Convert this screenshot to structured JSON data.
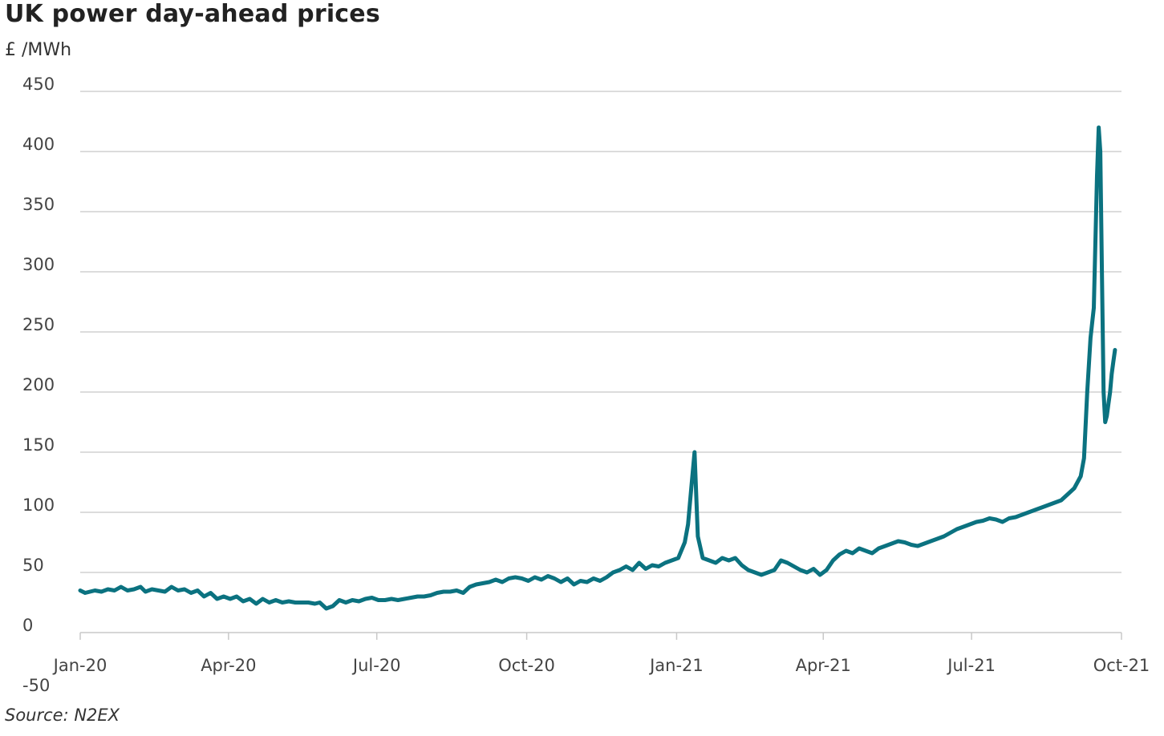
{
  "title": "UK power day-ahead prices",
  "unit": "£ /MWh",
  "source": "Source: N2EX",
  "chart_data": {
    "type": "line",
    "title": "UK power day-ahead prices",
    "ylabel": "£ /MWh",
    "xlabel": "",
    "ylim": [
      -50,
      450
    ],
    "y_ticks": [
      450,
      400,
      350,
      300,
      250,
      200,
      150,
      100,
      50,
      0,
      -50
    ],
    "x_tick_labels": [
      "Jan-20",
      "Apr-20",
      "Jul-20",
      "Oct-20",
      "Jan-21",
      "Apr-21",
      "Jul-21",
      "Oct-21"
    ],
    "x_tick_dates": [
      "2020-01-01",
      "2020-04-01",
      "2020-07-01",
      "2020-10-01",
      "2021-01-01",
      "2021-04-01",
      "2021-07-01",
      "2021-10-01"
    ],
    "grid": true,
    "line_color": "#0b7280",
    "series": [
      {
        "points": [
          [
            "2020-01-01",
            35
          ],
          [
            "2020-01-04",
            33
          ],
          [
            "2020-01-10",
            35
          ],
          [
            "2020-01-14",
            34
          ],
          [
            "2020-01-18",
            36
          ],
          [
            "2020-01-22",
            35
          ],
          [
            "2020-01-26",
            38
          ],
          [
            "2020-01-30",
            35
          ],
          [
            "2020-02-03",
            36
          ],
          [
            "2020-02-07",
            38
          ],
          [
            "2020-02-10",
            34
          ],
          [
            "2020-02-14",
            36
          ],
          [
            "2020-02-18",
            35
          ],
          [
            "2020-02-22",
            34
          ],
          [
            "2020-02-26",
            38
          ],
          [
            "2020-03-01",
            35
          ],
          [
            "2020-03-05",
            36
          ],
          [
            "2020-03-09",
            33
          ],
          [
            "2020-03-13",
            35
          ],
          [
            "2020-03-17",
            30
          ],
          [
            "2020-03-21",
            33
          ],
          [
            "2020-03-25",
            28
          ],
          [
            "2020-03-29",
            30
          ],
          [
            "2020-04-02",
            28
          ],
          [
            "2020-04-06",
            30
          ],
          [
            "2020-04-10",
            26
          ],
          [
            "2020-04-14",
            28
          ],
          [
            "2020-04-18",
            24
          ],
          [
            "2020-04-22",
            28
          ],
          [
            "2020-04-26",
            25
          ],
          [
            "2020-04-30",
            27
          ],
          [
            "2020-05-04",
            25
          ],
          [
            "2020-05-08",
            26
          ],
          [
            "2020-05-12",
            25
          ],
          [
            "2020-05-16",
            25
          ],
          [
            "2020-05-20",
            25
          ],
          [
            "2020-05-24",
            24
          ],
          [
            "2020-05-27",
            25
          ],
          [
            "2020-05-31",
            20
          ],
          [
            "2020-06-04",
            22
          ],
          [
            "2020-06-08",
            27
          ],
          [
            "2020-06-12",
            25
          ],
          [
            "2020-06-16",
            27
          ],
          [
            "2020-06-20",
            26
          ],
          [
            "2020-06-24",
            28
          ],
          [
            "2020-06-28",
            29
          ],
          [
            "2020-07-02",
            27
          ],
          [
            "2020-07-06",
            27
          ],
          [
            "2020-07-10",
            28
          ],
          [
            "2020-07-14",
            27
          ],
          [
            "2020-07-18",
            28
          ],
          [
            "2020-07-22",
            29
          ],
          [
            "2020-07-26",
            30
          ],
          [
            "2020-07-30",
            30
          ],
          [
            "2020-08-03",
            31
          ],
          [
            "2020-08-07",
            33
          ],
          [
            "2020-08-11",
            34
          ],
          [
            "2020-08-15",
            34
          ],
          [
            "2020-08-19",
            35
          ],
          [
            "2020-08-23",
            33
          ],
          [
            "2020-08-27",
            38
          ],
          [
            "2020-08-31",
            40
          ],
          [
            "2020-09-04",
            41
          ],
          [
            "2020-09-08",
            42
          ],
          [
            "2020-09-12",
            44
          ],
          [
            "2020-09-16",
            42
          ],
          [
            "2020-09-20",
            45
          ],
          [
            "2020-09-24",
            46
          ],
          [
            "2020-09-28",
            45
          ],
          [
            "2020-10-02",
            43
          ],
          [
            "2020-10-06",
            46
          ],
          [
            "2020-10-10",
            44
          ],
          [
            "2020-10-14",
            47
          ],
          [
            "2020-10-18",
            45
          ],
          [
            "2020-10-22",
            42
          ],
          [
            "2020-10-26",
            45
          ],
          [
            "2020-10-30",
            40
          ],
          [
            "2020-11-03",
            43
          ],
          [
            "2020-11-07",
            42
          ],
          [
            "2020-11-11",
            45
          ],
          [
            "2020-11-15",
            43
          ],
          [
            "2020-11-19",
            46
          ],
          [
            "2020-11-23",
            50
          ],
          [
            "2020-11-27",
            52
          ],
          [
            "2020-12-01",
            55
          ],
          [
            "2020-12-05",
            52
          ],
          [
            "2020-12-09",
            58
          ],
          [
            "2020-12-13",
            53
          ],
          [
            "2020-12-17",
            56
          ],
          [
            "2020-12-21",
            55
          ],
          [
            "2020-12-25",
            58
          ],
          [
            "2020-12-29",
            60
          ],
          [
            "2021-01-02",
            62
          ],
          [
            "2021-01-06",
            75
          ],
          [
            "2021-01-08",
            90
          ],
          [
            "2021-01-10",
            120
          ],
          [
            "2021-01-12",
            150
          ],
          [
            "2021-01-14",
            80
          ],
          [
            "2021-01-17",
            62
          ],
          [
            "2021-01-21",
            60
          ],
          [
            "2021-01-25",
            58
          ],
          [
            "2021-01-29",
            62
          ],
          [
            "2021-02-02",
            60
          ],
          [
            "2021-02-06",
            62
          ],
          [
            "2021-02-10",
            56
          ],
          [
            "2021-02-14",
            52
          ],
          [
            "2021-02-18",
            50
          ],
          [
            "2021-02-22",
            48
          ],
          [
            "2021-02-26",
            50
          ],
          [
            "2021-03-02",
            52
          ],
          [
            "2021-03-06",
            60
          ],
          [
            "2021-03-10",
            58
          ],
          [
            "2021-03-14",
            55
          ],
          [
            "2021-03-18",
            52
          ],
          [
            "2021-03-22",
            50
          ],
          [
            "2021-03-26",
            53
          ],
          [
            "2021-03-30",
            48
          ],
          [
            "2021-04-03",
            52
          ],
          [
            "2021-04-07",
            60
          ],
          [
            "2021-04-11",
            65
          ],
          [
            "2021-04-15",
            68
          ],
          [
            "2021-04-19",
            66
          ],
          [
            "2021-04-23",
            70
          ],
          [
            "2021-04-27",
            68
          ],
          [
            "2021-05-01",
            66
          ],
          [
            "2021-05-05",
            70
          ],
          [
            "2021-05-09",
            72
          ],
          [
            "2021-05-13",
            74
          ],
          [
            "2021-05-17",
            76
          ],
          [
            "2021-05-21",
            75
          ],
          [
            "2021-05-25",
            73
          ],
          [
            "2021-05-29",
            72
          ],
          [
            "2021-06-02",
            74
          ],
          [
            "2021-06-06",
            76
          ],
          [
            "2021-06-10",
            78
          ],
          [
            "2021-06-14",
            80
          ],
          [
            "2021-06-18",
            83
          ],
          [
            "2021-06-22",
            86
          ],
          [
            "2021-06-26",
            88
          ],
          [
            "2021-06-30",
            90
          ],
          [
            "2021-07-04",
            92
          ],
          [
            "2021-07-08",
            93
          ],
          [
            "2021-07-12",
            95
          ],
          [
            "2021-07-16",
            94
          ],
          [
            "2021-07-20",
            92
          ],
          [
            "2021-07-24",
            95
          ],
          [
            "2021-07-28",
            96
          ],
          [
            "2021-08-01",
            98
          ],
          [
            "2021-08-05",
            100
          ],
          [
            "2021-08-09",
            102
          ],
          [
            "2021-08-13",
            104
          ],
          [
            "2021-08-17",
            106
          ],
          [
            "2021-08-21",
            108
          ],
          [
            "2021-08-25",
            110
          ],
          [
            "2021-08-29",
            115
          ],
          [
            "2021-09-02",
            120
          ],
          [
            "2021-09-06",
            130
          ],
          [
            "2021-09-08",
            145
          ],
          [
            "2021-09-10",
            200
          ],
          [
            "2021-09-12",
            245
          ],
          [
            "2021-09-14",
            270
          ],
          [
            "2021-09-16",
            380
          ],
          [
            "2021-09-17",
            420
          ],
          [
            "2021-09-18",
            400
          ],
          [
            "2021-09-19",
            300
          ],
          [
            "2021-09-20",
            200
          ],
          [
            "2021-09-21",
            175
          ],
          [
            "2021-09-22",
            180
          ],
          [
            "2021-09-23",
            190
          ],
          [
            "2021-09-24",
            200
          ],
          [
            "2021-09-25",
            215
          ],
          [
            "2021-09-26",
            225
          ],
          [
            "2021-09-27",
            235
          ]
        ]
      }
    ]
  }
}
